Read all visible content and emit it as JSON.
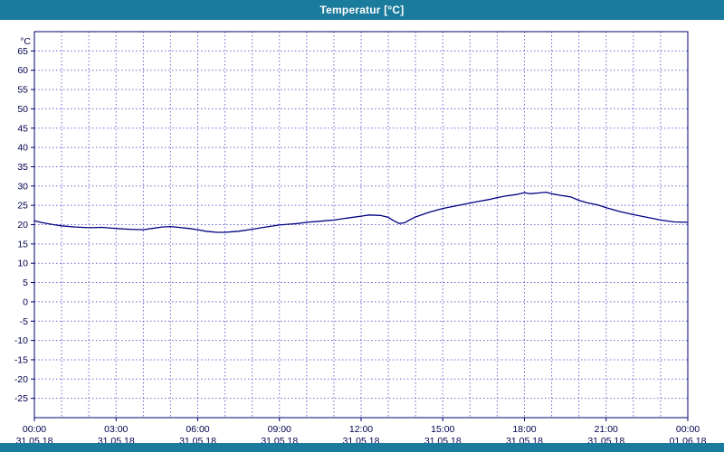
{
  "window": {
    "title": "Temperatur [°C]"
  },
  "colors": {
    "titlebar_bg": "#1b7b9c",
    "title_text": "#ffffff",
    "plot_bg": "#ffffff",
    "plot_border": "#000070",
    "grid": "#6a6ad2",
    "line": "#000080",
    "label_text": "#00004d",
    "tick": "#000070",
    "bottombar_bg": "#1b7b9c"
  },
  "chart_data": {
    "type": "line",
    "title": "Temperatur [°C]",
    "ylabel": "°C",
    "ylim": [
      -30,
      70
    ],
    "xlim_hours": [
      0,
      24
    ],
    "grid": "on",
    "minor_x_gridline_every_hours": 1,
    "y_ticks": [
      65,
      60,
      55,
      50,
      45,
      40,
      35,
      30,
      25,
      20,
      15,
      10,
      5,
      0,
      -5,
      -10,
      -15,
      -20,
      -25
    ],
    "x_ticks": [
      {
        "hour": 0,
        "time": "00:00",
        "date": "31.05.18"
      },
      {
        "hour": 3,
        "time": "03:00",
        "date": "31.05.18"
      },
      {
        "hour": 6,
        "time": "06:00",
        "date": "31.05.18"
      },
      {
        "hour": 9,
        "time": "09:00",
        "date": "31.05.18"
      },
      {
        "hour": 12,
        "time": "12:00",
        "date": "31.05.18"
      },
      {
        "hour": 15,
        "time": "15:00",
        "date": "31.05.18"
      },
      {
        "hour": 18,
        "time": "18:00",
        "date": "31.05.18"
      },
      {
        "hour": 21,
        "time": "21:00",
        "date": "31.05.18"
      },
      {
        "hour": 24,
        "time": "00:00",
        "date": "01.06.18"
      }
    ],
    "series": [
      {
        "name": "Temperatur",
        "x": [
          0,
          0.3,
          0.7,
          1.0,
          1.5,
          2.0,
          2.5,
          3.0,
          3.5,
          4.0,
          4.3,
          4.7,
          5.0,
          5.3,
          5.7,
          6.0,
          6.3,
          6.7,
          7.0,
          7.5,
          8.0,
          8.5,
          9.0,
          9.3,
          9.7,
          10.0,
          10.5,
          11.0,
          11.5,
          12.0,
          12.3,
          12.7,
          13.0,
          13.2,
          13.4,
          13.6,
          13.8,
          14.0,
          14.5,
          15.0,
          15.5,
          16.0,
          16.3,
          16.7,
          17.0,
          17.3,
          17.7,
          18.0,
          18.2,
          18.5,
          18.8,
          19.0,
          19.3,
          19.7,
          20.0,
          20.3,
          20.7,
          21.0,
          21.5,
          22.0,
          22.5,
          23.0,
          23.5,
          24.0
        ],
        "y": [
          21.0,
          20.5,
          20.0,
          19.7,
          19.4,
          19.2,
          19.3,
          19.0,
          18.8,
          18.7,
          19.0,
          19.4,
          19.5,
          19.3,
          19.0,
          18.7,
          18.3,
          18.0,
          18.0,
          18.3,
          18.8,
          19.4,
          19.9,
          20.1,
          20.3,
          20.6,
          20.9,
          21.2,
          21.7,
          22.2,
          22.5,
          22.4,
          21.9,
          21.0,
          20.3,
          20.5,
          21.3,
          22.0,
          23.2,
          24.2,
          24.9,
          25.6,
          26.0,
          26.5,
          27.0,
          27.4,
          27.8,
          28.3,
          28.0,
          28.2,
          28.4,
          28.0,
          27.6,
          27.2,
          26.3,
          25.7,
          25.1,
          24.4,
          23.4,
          22.6,
          21.9,
          21.2,
          20.7,
          20.6
        ]
      }
    ]
  }
}
